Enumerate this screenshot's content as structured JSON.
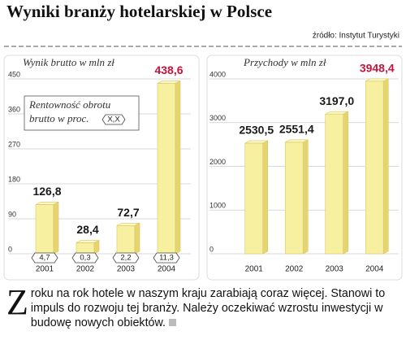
{
  "header": {
    "title": "Wyniki branży hotelarskiej w Polsce",
    "source": "źródło: Instytut Turystyki"
  },
  "chart_data": [
    {
      "type": "bar",
      "subtitle": "Wynik brutto w mln zł",
      "categories": [
        "2001",
        "2002",
        "2003",
        "2004"
      ],
      "values": [
        126.8,
        28.4,
        72.7,
        438.6
      ],
      "value_labels": [
        "126,8",
        "28,4",
        "72,7",
        "438,6"
      ],
      "value_label_colors": [
        "#1a1a1a",
        "#1a1a1a",
        "#1a1a1a",
        "#c8123c"
      ],
      "ratios": [
        4.7,
        0.3,
        2.2,
        11.3
      ],
      "ratio_labels": [
        "4,7",
        "0,3",
        "2,2",
        "11,3"
      ],
      "legend": {
        "label": "Rentowność obrotu brutto w proc.",
        "symbol": "X,X"
      },
      "color": "#f7f0a0",
      "ylim": [
        0,
        450
      ],
      "yticks": [
        0,
        90,
        180,
        270,
        360,
        450
      ],
      "grid": true
    },
    {
      "type": "bar",
      "subtitle": "Przychody w mln zł",
      "categories": [
        "2001",
        "2002",
        "2003",
        "2004"
      ],
      "values": [
        2530.5,
        2551.4,
        3197.0,
        3948.4
      ],
      "value_labels": [
        "2530,5",
        "2551,4",
        "3197,0",
        "3948,4"
      ],
      "value_label_colors": [
        "#1a1a1a",
        "#1a1a1a",
        "#1a1a1a",
        "#c8123c"
      ],
      "color": "#f7f0a0",
      "ylim": [
        0,
        4000
      ],
      "yticks": [
        0,
        1000,
        2000,
        3000,
        4000
      ],
      "grid": true
    }
  ],
  "text": "Z roku na rok hotele w naszym kraju zarabiają coraz więcej. Stanowi to impuls do rozwoju tej branży. Należy oczekiwać wzrostu inwestycji w budowę nowych obiektów."
}
